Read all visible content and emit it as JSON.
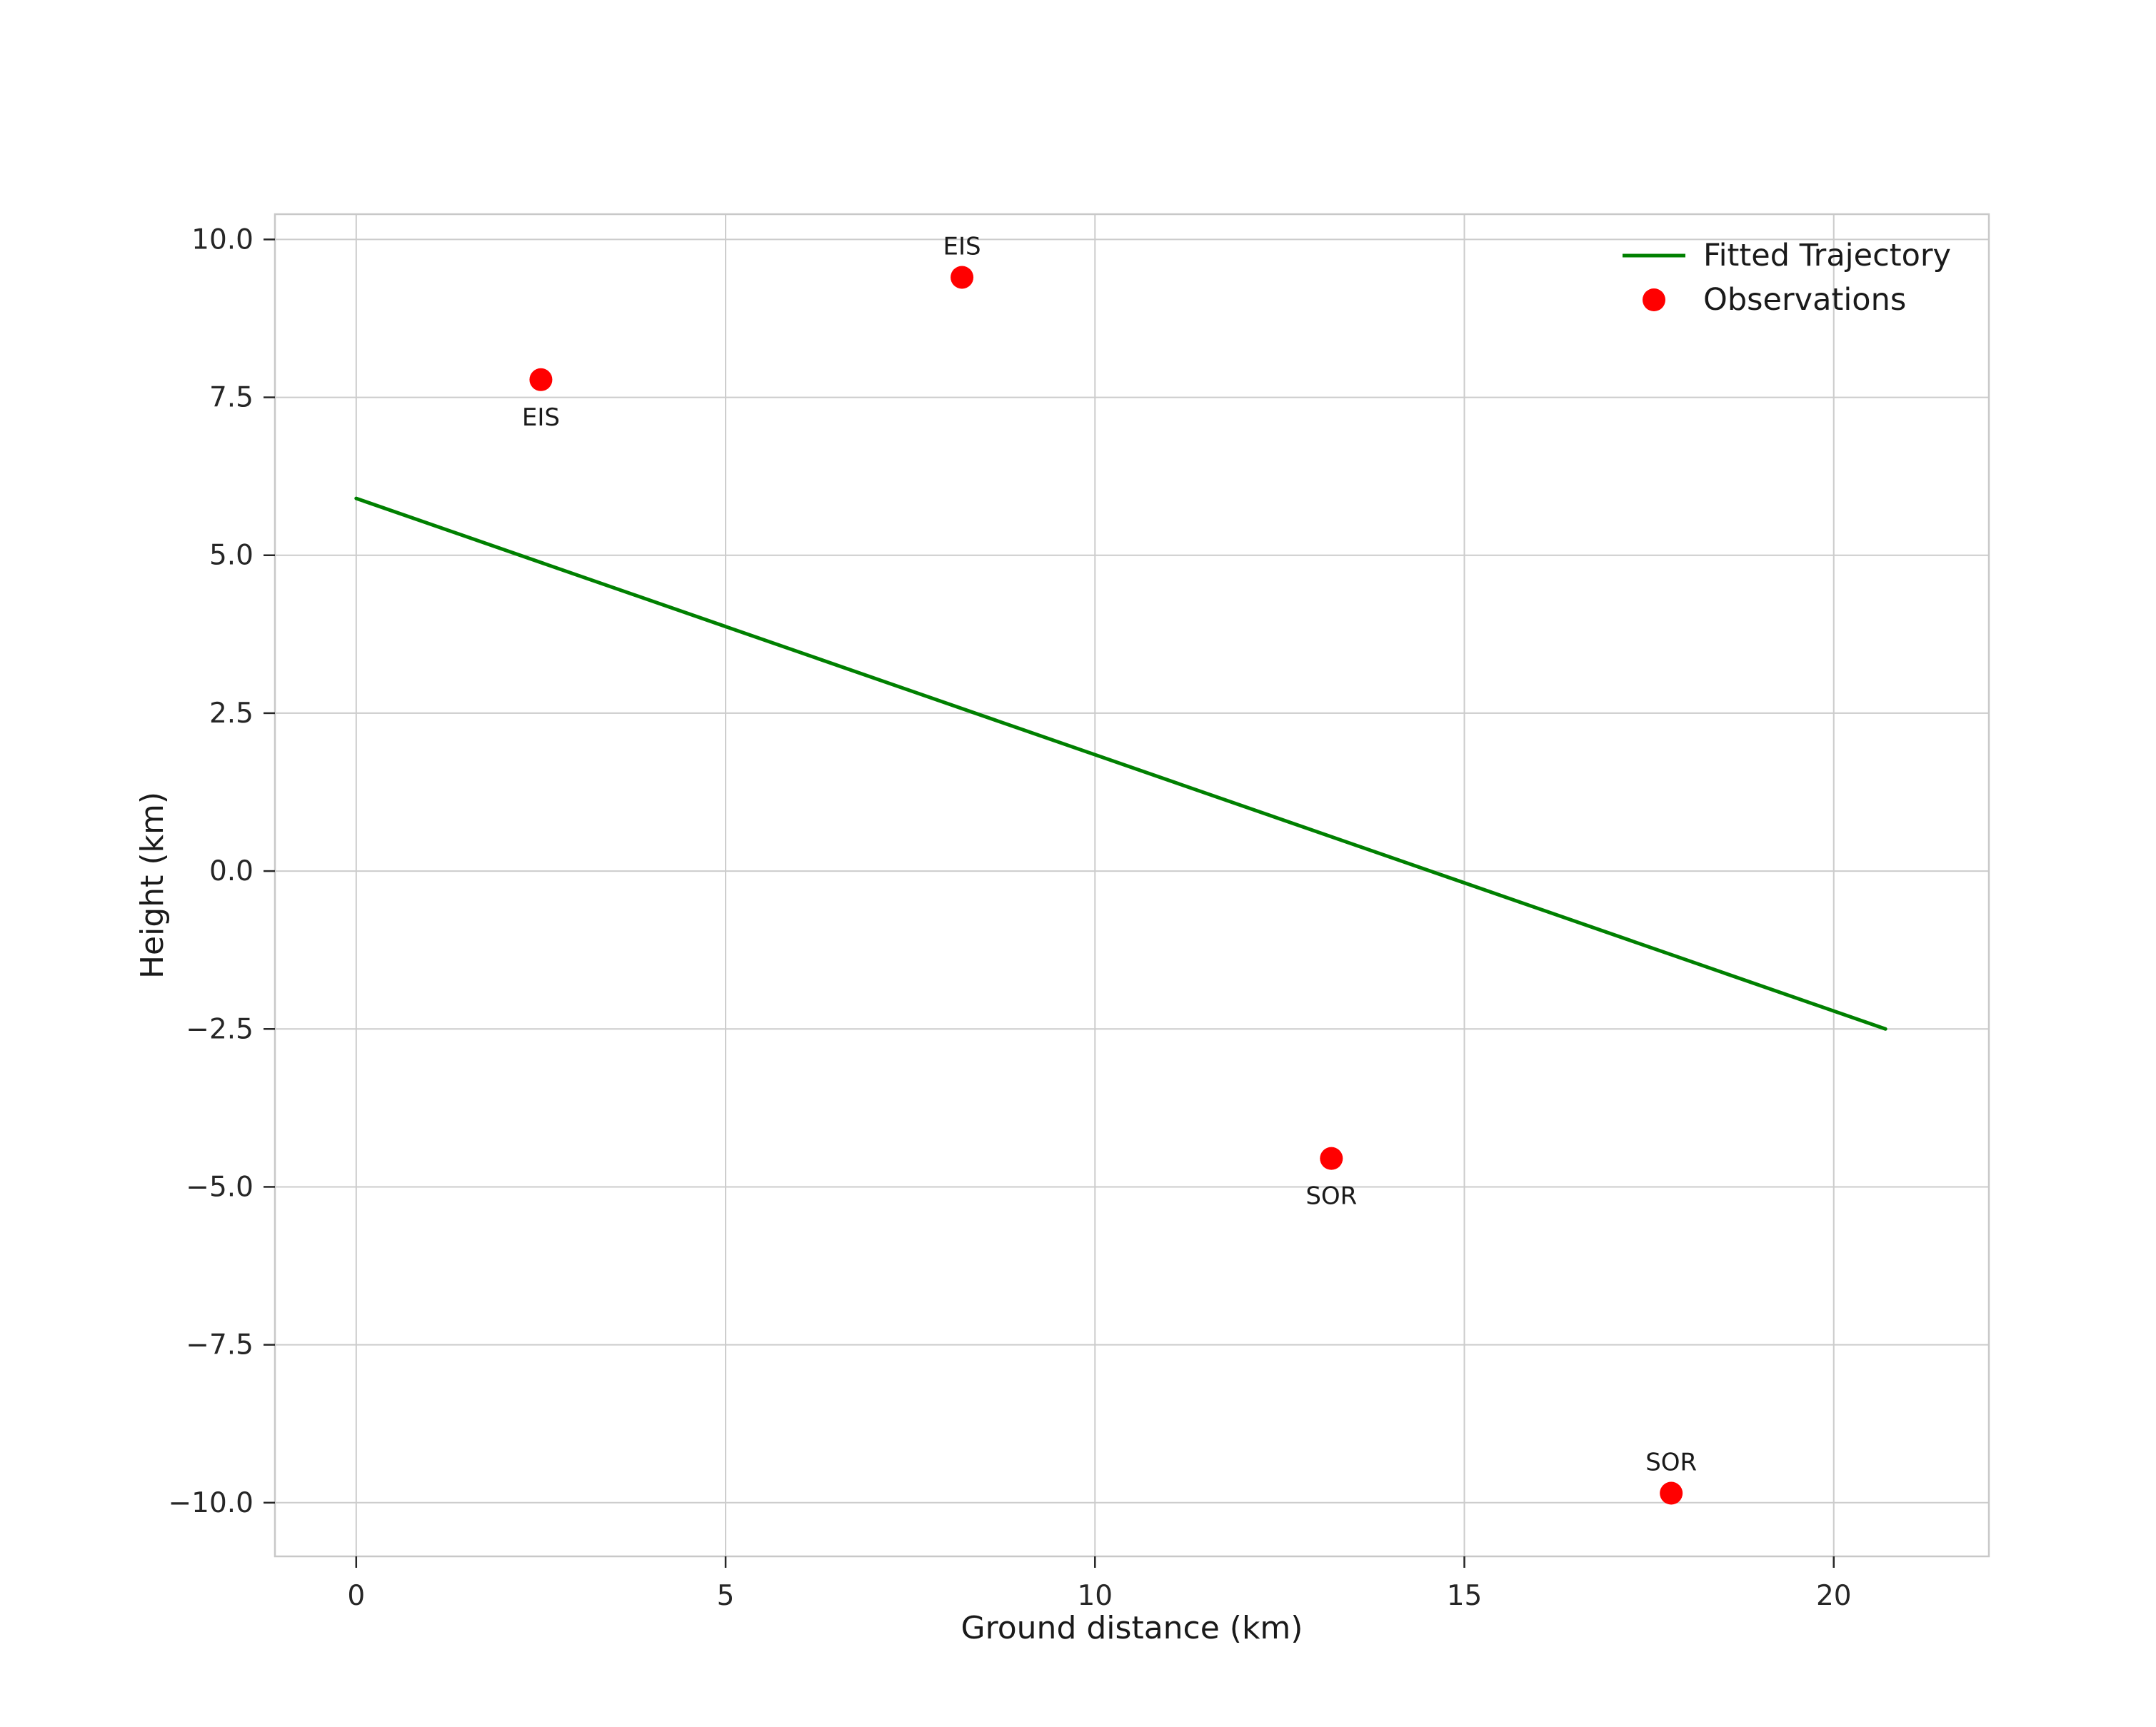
{
  "chart_data": {
    "type": "scatter",
    "title": "",
    "xlabel": "Ground distance (km)",
    "ylabel": "Height (km)",
    "xlim": [
      -1.1,
      22.1
    ],
    "ylim": [
      -10.85,
      10.4
    ],
    "grid": true,
    "x_ticks": [
      0,
      5,
      10,
      15,
      20
    ],
    "x_tick_labels": [
      "0",
      "5",
      "10",
      "15",
      "20"
    ],
    "y_ticks": [
      10.0,
      7.5,
      5.0,
      2.5,
      0.0,
      -2.5,
      -5.0,
      -7.5,
      -10.0
    ],
    "y_tick_labels": [
      "10.0",
      "7.5",
      "5.0",
      "2.5",
      "0.0",
      "−2.5",
      "−5.0",
      "−7.5",
      "−10.0"
    ],
    "legend": {
      "position": "upper right",
      "entries": [
        {
          "label": "Fitted Trajectory",
          "type": "line",
          "color": "#008000"
        },
        {
          "label": "Observations",
          "type": "marker",
          "color": "#ff0000"
        }
      ]
    },
    "series": [
      {
        "name": "Fitted Trajectory",
        "type": "line",
        "color": "#008000",
        "linewidth": 5,
        "points": [
          [
            0.0,
            5.9
          ],
          [
            20.7,
            -2.5
          ]
        ]
      },
      {
        "name": "Observations",
        "type": "scatter",
        "color": "#ff0000",
        "marker_radius": 16,
        "points": [
          {
            "x": 2.5,
            "y": 7.78,
            "label": "EIS",
            "label_position": "below"
          },
          {
            "x": 8.2,
            "y": 9.4,
            "label": "EIS",
            "label_position": "above"
          },
          {
            "x": 13.2,
            "y": -4.55,
            "label": "SOR",
            "label_position": "below"
          },
          {
            "x": 17.8,
            "y": -9.85,
            "label": "SOR",
            "label_position": "above"
          }
        ]
      }
    ]
  }
}
